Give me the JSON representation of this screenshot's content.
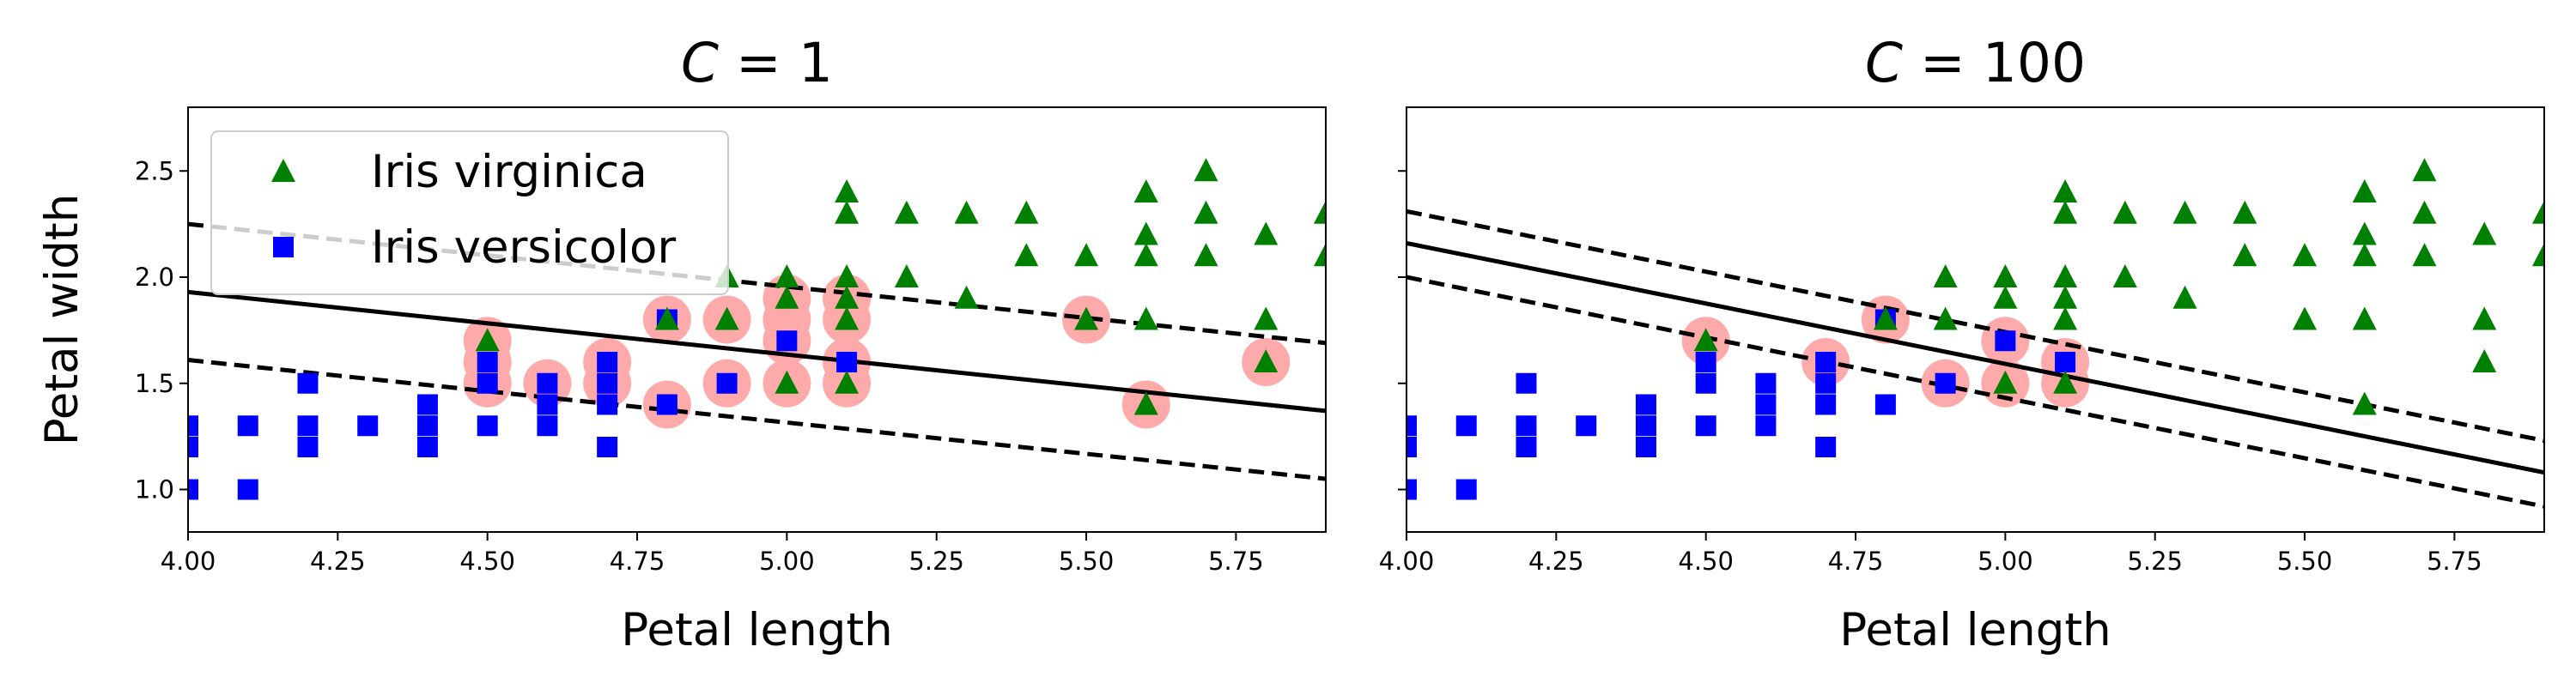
{
  "chart_data": [
    {
      "type": "scatter",
      "title_var": "C",
      "title_eq": " = ",
      "title_val": "1",
      "xlabel": "Petal length",
      "ylabel": "Petal width",
      "xlim": [
        4.0,
        5.9
      ],
      "ylim": [
        0.8,
        2.8
      ],
      "xticks": [
        "4.00",
        "4.25",
        "4.50",
        "4.75",
        "5.00",
        "5.25",
        "5.50",
        "5.75"
      ],
      "yticks": [
        "1.0",
        "1.5",
        "2.0",
        "2.5"
      ],
      "legend": {
        "position": "upper-left",
        "entries": [
          {
            "label": "Iris virginica",
            "marker": "triangle",
            "color": "#008000"
          },
          {
            "label": "Iris versicolor",
            "marker": "square",
            "color": "#0000ff"
          }
        ]
      },
      "decision_boundary": {
        "x": [
          4.0,
          5.9
        ],
        "y": [
          1.93,
          1.37
        ]
      },
      "margin_upper": {
        "x": [
          4.0,
          5.9
        ],
        "y": [
          2.25,
          1.69
        ]
      },
      "margin_lower": {
        "x": [
          4.0,
          5.9
        ],
        "y": [
          1.61,
          1.05
        ]
      },
      "support_vectors": [
        [
          4.5,
          1.7
        ],
        [
          4.5,
          1.6
        ],
        [
          4.5,
          1.5
        ],
        [
          4.6,
          1.5
        ],
        [
          4.7,
          1.6
        ],
        [
          4.7,
          1.5
        ],
        [
          4.8,
          1.8
        ],
        [
          4.8,
          1.4
        ],
        [
          4.9,
          1.8
        ],
        [
          4.9,
          1.5
        ],
        [
          5.0,
          1.9
        ],
        [
          5.0,
          1.8
        ],
        [
          5.0,
          1.7
        ],
        [
          5.0,
          1.5
        ],
        [
          5.1,
          1.9
        ],
        [
          5.1,
          1.8
        ],
        [
          5.1,
          1.6
        ],
        [
          5.1,
          1.5
        ],
        [
          5.5,
          1.8
        ],
        [
          5.6,
          1.4
        ],
        [
          5.8,
          1.6
        ]
      ]
    },
    {
      "type": "scatter",
      "title_var": "C",
      "title_eq": " = ",
      "title_val": "100",
      "xlabel": "Petal length",
      "ylabel": "",
      "xlim": [
        4.0,
        5.9
      ],
      "ylim": [
        0.8,
        2.8
      ],
      "xticks": [
        "4.00",
        "4.25",
        "4.50",
        "4.75",
        "5.00",
        "5.25",
        "5.50",
        "5.75"
      ],
      "yticks": [
        "",
        "",
        "",
        ""
      ],
      "decision_boundary": {
        "x": [
          4.0,
          5.9
        ],
        "y": [
          2.16,
          1.08
        ]
      },
      "margin_upper": {
        "x": [
          4.0,
          5.9
        ],
        "y": [
          2.31,
          1.23
        ]
      },
      "margin_lower": {
        "x": [
          4.0,
          5.9
        ],
        "y": [
          2.0,
          0.92
        ]
      },
      "support_vectors": [
        [
          4.5,
          1.7
        ],
        [
          4.7,
          1.6
        ],
        [
          4.8,
          1.8
        ],
        [
          4.9,
          1.5
        ],
        [
          5.0,
          1.7
        ],
        [
          5.0,
          1.5
        ],
        [
          5.1,
          1.6
        ],
        [
          5.1,
          1.5
        ]
      ]
    }
  ],
  "virginica": [
    [
      4.5,
      1.7
    ],
    [
      4.8,
      1.8
    ],
    [
      4.9,
      1.8
    ],
    [
      4.9,
      2.0
    ],
    [
      5.0,
      1.5
    ],
    [
      5.0,
      2.0
    ],
    [
      5.0,
      1.9
    ],
    [
      5.1,
      2.4
    ],
    [
      5.1,
      2.3
    ],
    [
      5.1,
      2.0
    ],
    [
      5.1,
      1.9
    ],
    [
      5.1,
      1.8
    ],
    [
      5.1,
      1.5
    ],
    [
      5.2,
      2.3
    ],
    [
      5.2,
      2.0
    ],
    [
      5.3,
      2.3
    ],
    [
      5.3,
      1.9
    ],
    [
      5.4,
      2.3
    ],
    [
      5.4,
      2.1
    ],
    [
      5.5,
      2.1
    ],
    [
      5.5,
      1.8
    ],
    [
      5.6,
      2.4
    ],
    [
      5.6,
      2.2
    ],
    [
      5.6,
      2.1
    ],
    [
      5.6,
      1.8
    ],
    [
      5.6,
      1.4
    ],
    [
      5.7,
      2.5
    ],
    [
      5.7,
      2.3
    ],
    [
      5.7,
      2.1
    ],
    [
      5.8,
      2.2
    ],
    [
      5.8,
      1.8
    ],
    [
      5.8,
      1.6
    ],
    [
      5.9,
      2.3
    ],
    [
      5.9,
      2.1
    ]
  ],
  "versicolor": [
    [
      4.0,
      1.3
    ],
    [
      4.0,
      1.2
    ],
    [
      4.0,
      1.0
    ],
    [
      4.1,
      1.3
    ],
    [
      4.1,
      1.0
    ],
    [
      4.2,
      1.5
    ],
    [
      4.2,
      1.3
    ],
    [
      4.2,
      1.2
    ],
    [
      4.3,
      1.3
    ],
    [
      4.4,
      1.4
    ],
    [
      4.4,
      1.3
    ],
    [
      4.4,
      1.2
    ],
    [
      4.5,
      1.6
    ],
    [
      4.5,
      1.5
    ],
    [
      4.5,
      1.3
    ],
    [
      4.6,
      1.5
    ],
    [
      4.6,
      1.4
    ],
    [
      4.6,
      1.3
    ],
    [
      4.7,
      1.6
    ],
    [
      4.7,
      1.5
    ],
    [
      4.7,
      1.4
    ],
    [
      4.7,
      1.2
    ],
    [
      4.8,
      1.8
    ],
    [
      4.8,
      1.4
    ],
    [
      4.9,
      1.5
    ],
    [
      5.0,
      1.7
    ],
    [
      5.1,
      1.6
    ]
  ],
  "colors": {
    "virginica": "#008000",
    "versicolor": "#0000ff",
    "support_vector": "#ffaaaa",
    "line": "#000000"
  }
}
